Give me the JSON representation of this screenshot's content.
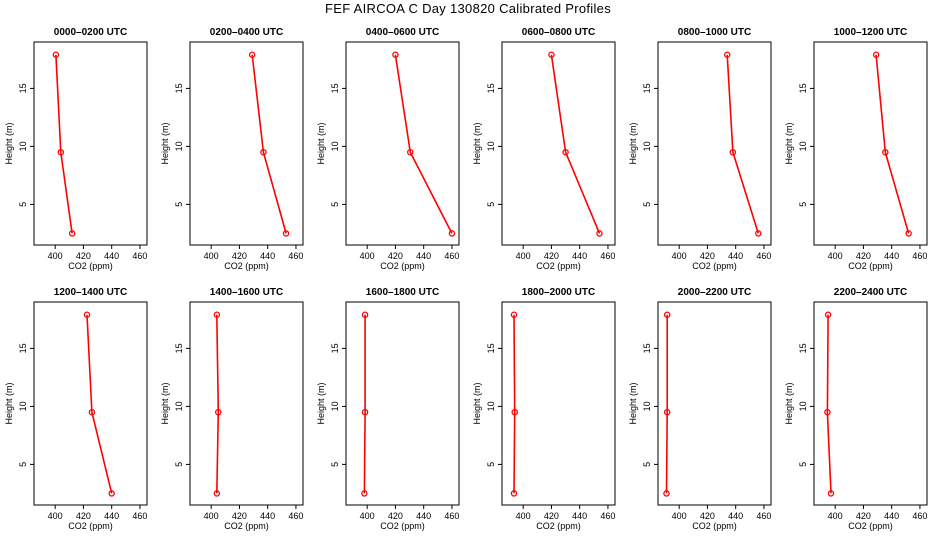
{
  "title": "FEF AIRCOA C  Day 130820  Calibrated Profiles",
  "colors": {
    "series": "#ff0000",
    "axis": "#000000",
    "background": "#ffffff"
  },
  "chart_data": [
    {
      "type": "line",
      "title": "0000–0200 UTC",
      "xlabel": "CO2 (ppm)",
      "ylabel": "Height (m)",
      "xlim": [
        385,
        465
      ],
      "ylim": [
        1.5,
        19
      ],
      "xticks": [
        400,
        420,
        440,
        460
      ],
      "yticks": [
        5,
        10,
        15
      ],
      "points": [
        {
          "x": 400.5,
          "y": 17.9
        },
        {
          "x": 404,
          "y": 9.5
        },
        {
          "x": 412,
          "y": 2.5
        }
      ]
    },
    {
      "type": "line",
      "title": "0200–0400 UTC",
      "xlabel": "CO2 (ppm)",
      "ylabel": "Height (m)",
      "xlim": [
        385,
        465
      ],
      "ylim": [
        1.5,
        19
      ],
      "xticks": [
        400,
        420,
        440,
        460
      ],
      "yticks": [
        5,
        10,
        15
      ],
      "points": [
        {
          "x": 429,
          "y": 17.9
        },
        {
          "x": 437,
          "y": 9.5
        },
        {
          "x": 453,
          "y": 2.5
        }
      ]
    },
    {
      "type": "line",
      "title": "0400–0600 UTC",
      "xlabel": "CO2 (ppm)",
      "ylabel": "Height (m)",
      "xlim": [
        385,
        465
      ],
      "ylim": [
        1.5,
        19
      ],
      "xticks": [
        400,
        420,
        440,
        460
      ],
      "yticks": [
        5,
        10,
        15
      ],
      "points": [
        {
          "x": 420,
          "y": 17.9
        },
        {
          "x": 430.5,
          "y": 9.5
        },
        {
          "x": 460,
          "y": 2.5
        }
      ]
    },
    {
      "type": "line",
      "title": "0600–0800 UTC",
      "xlabel": "CO2 (ppm)",
      "ylabel": "Height (m)",
      "xlim": [
        385,
        465
      ],
      "ylim": [
        1.5,
        19
      ],
      "xticks": [
        400,
        420,
        440,
        460
      ],
      "yticks": [
        5,
        10,
        15
      ],
      "points": [
        {
          "x": 420,
          "y": 17.9
        },
        {
          "x": 430,
          "y": 9.5
        },
        {
          "x": 454,
          "y": 2.5
        }
      ]
    },
    {
      "type": "line",
      "title": "0800–1000 UTC",
      "xlabel": "CO2 (ppm)",
      "ylabel": "Height (m)",
      "xlim": [
        385,
        465
      ],
      "ylim": [
        1.5,
        19
      ],
      "xticks": [
        400,
        420,
        440,
        460
      ],
      "yticks": [
        5,
        10,
        15
      ],
      "points": [
        {
          "x": 434,
          "y": 17.9
        },
        {
          "x": 438,
          "y": 9.5
        },
        {
          "x": 456,
          "y": 2.5
        }
      ]
    },
    {
      "type": "line",
      "title": "1000–1200 UTC",
      "xlabel": "CO2 (ppm)",
      "ylabel": "Height (m)",
      "xlim": [
        385,
        465
      ],
      "ylim": [
        1.5,
        19
      ],
      "xticks": [
        400,
        420,
        440,
        460
      ],
      "yticks": [
        5,
        10,
        15
      ],
      "points": [
        {
          "x": 429,
          "y": 17.9
        },
        {
          "x": 435.5,
          "y": 9.5
        },
        {
          "x": 452,
          "y": 2.5
        }
      ]
    },
    {
      "type": "line",
      "title": "1200–1400 UTC",
      "xlabel": "CO2 (ppm)",
      "ylabel": "Height (m)",
      "xlim": [
        385,
        465
      ],
      "ylim": [
        1.5,
        19
      ],
      "xticks": [
        400,
        420,
        440,
        460
      ],
      "yticks": [
        5,
        10,
        15
      ],
      "points": [
        {
          "x": 422.5,
          "y": 17.9
        },
        {
          "x": 426,
          "y": 9.5
        },
        {
          "x": 440,
          "y": 2.5
        }
      ]
    },
    {
      "type": "line",
      "title": "1400–1600 UTC",
      "xlabel": "CO2 (ppm)",
      "ylabel": "Height (m)",
      "xlim": [
        385,
        465
      ],
      "ylim": [
        1.5,
        19
      ],
      "xticks": [
        400,
        420,
        440,
        460
      ],
      "yticks": [
        5,
        10,
        15
      ],
      "points": [
        {
          "x": 404,
          "y": 17.9
        },
        {
          "x": 405,
          "y": 9.5
        },
        {
          "x": 404,
          "y": 2.5
        }
      ]
    },
    {
      "type": "line",
      "title": "1600–1800 UTC",
      "xlabel": "CO2 (ppm)",
      "ylabel": "Height (m)",
      "xlim": [
        385,
        465
      ],
      "ylim": [
        1.5,
        19
      ],
      "xticks": [
        400,
        420,
        440,
        460
      ],
      "yticks": [
        5,
        10,
        15
      ],
      "points": [
        {
          "x": 398.5,
          "y": 17.9
        },
        {
          "x": 398.5,
          "y": 9.5
        },
        {
          "x": 398,
          "y": 2.5
        }
      ]
    },
    {
      "type": "line",
      "title": "1800–2000 UTC",
      "xlabel": "CO2 (ppm)",
      "ylabel": "Height (m)",
      "xlim": [
        385,
        465
      ],
      "ylim": [
        1.5,
        19
      ],
      "xticks": [
        400,
        420,
        440,
        460
      ],
      "yticks": [
        5,
        10,
        15
      ],
      "points": [
        {
          "x": 393.5,
          "y": 17.9
        },
        {
          "x": 394,
          "y": 9.5
        },
        {
          "x": 393.5,
          "y": 2.5
        }
      ]
    },
    {
      "type": "line",
      "title": "2000–2200 UTC",
      "xlabel": "CO2 (ppm)",
      "ylabel": "Height (m)",
      "xlim": [
        385,
        465
      ],
      "ylim": [
        1.5,
        19
      ],
      "xticks": [
        400,
        420,
        440,
        460
      ],
      "yticks": [
        5,
        10,
        15
      ],
      "points": [
        {
          "x": 391.5,
          "y": 17.9
        },
        {
          "x": 391.5,
          "y": 9.5
        },
        {
          "x": 391,
          "y": 2.5
        }
      ]
    },
    {
      "type": "line",
      "title": "2200–2400 UTC",
      "xlabel": "CO2 (ppm)",
      "ylabel": "Height (m)",
      "xlim": [
        385,
        465
      ],
      "ylim": [
        1.5,
        19
      ],
      "xticks": [
        400,
        420,
        440,
        460
      ],
      "yticks": [
        5,
        10,
        15
      ],
      "points": [
        {
          "x": 395,
          "y": 17.9
        },
        {
          "x": 394.5,
          "y": 9.5
        },
        {
          "x": 397,
          "y": 2.5
        }
      ]
    }
  ]
}
